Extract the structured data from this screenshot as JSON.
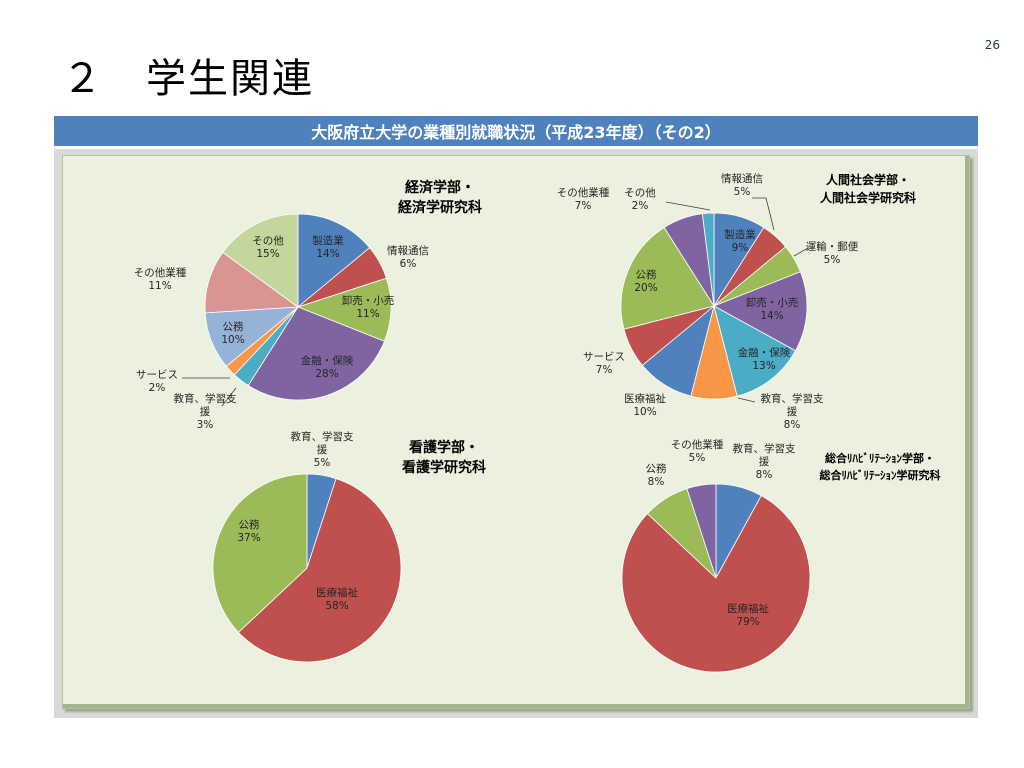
{
  "page_number": "26",
  "slide_title": "２　学生関連",
  "banner_title": "大阪府立大学の業種別就職状況（平成23年度）（その2）",
  "colors": {
    "banner": "#4f81bd",
    "panel": "#ebf1de",
    "製造業": "#4f81bd",
    "情報通信": "#c0504d",
    "運輸・郵便": "#9bbb59",
    "卸売・小売": "#9bbb59",
    "金融・保険": "#8064a2",
    "教育、学習支援": "#f79646",
    "サービス": "#4bacc6",
    "公務": "#9bbb59",
    "医療福祉": "#c0504d",
    "その他業種": "#d99594",
    "その他": "#c3d69b"
  },
  "chart_data": [
    {
      "type": "pie",
      "title": "経済学部・\n経済学研究科",
      "slices": [
        {
          "label": "製造業",
          "value": 14,
          "color": "#4f81bd"
        },
        {
          "label": "情報通信",
          "value": 6,
          "color": "#c0504d"
        },
        {
          "label": "卸売・小売",
          "value": 11,
          "color": "#9bbb59"
        },
        {
          "label": "金融・保険",
          "value": 28,
          "color": "#8064a2"
        },
        {
          "label": "教育、学習支援",
          "value": 3,
          "color": "#4bacc6"
        },
        {
          "label": "サービス",
          "value": 2,
          "color": "#f79646"
        },
        {
          "label": "公務",
          "value": 10,
          "color": "#95b3d7"
        },
        {
          "label": "その他業種",
          "value": 11,
          "color": "#d99594"
        },
        {
          "label": "その他",
          "value": 15,
          "color": "#c3d69b"
        }
      ]
    },
    {
      "type": "pie",
      "title": "人間社会学部・\n人間社会学研究科",
      "slices": [
        {
          "label": "製造業",
          "value": 9,
          "color": "#4f81bd"
        },
        {
          "label": "情報通信",
          "value": 5,
          "color": "#c0504d"
        },
        {
          "label": "運輸・郵便",
          "value": 5,
          "color": "#9bbb59"
        },
        {
          "label": "卸売・小売",
          "value": 14,
          "color": "#8064a2"
        },
        {
          "label": "金融・保険",
          "value": 13,
          "color": "#4bacc6"
        },
        {
          "label": "教育、学習支援",
          "value": 8,
          "color": "#f79646"
        },
        {
          "label": "医療福祉",
          "value": 10,
          "color": "#4f81bd"
        },
        {
          "label": "サービス",
          "value": 7,
          "color": "#c0504d"
        },
        {
          "label": "公務",
          "value": 20,
          "color": "#9bbb59"
        },
        {
          "label": "その他業種",
          "value": 7,
          "color": "#8064a2"
        },
        {
          "label": "その他",
          "value": 2,
          "color": "#4bacc6"
        }
      ]
    },
    {
      "type": "pie",
      "title": "看護学部・\n看護学研究科",
      "slices": [
        {
          "label": "教育、学習支援",
          "value": 5,
          "color": "#4f81bd"
        },
        {
          "label": "医療福祉",
          "value": 58,
          "color": "#c0504d"
        },
        {
          "label": "公務",
          "value": 37,
          "color": "#9bbb59"
        }
      ]
    },
    {
      "type": "pie",
      "title": "総合ﾘﾊﾋﾞﾘﾃｰｼｮﾝ学部・\n総合ﾘﾊﾋﾞﾘﾃｰｼｮﾝ学研究科",
      "slices": [
        {
          "label": "教育、学習支援",
          "value": 8,
          "color": "#4f81bd"
        },
        {
          "label": "医療福祉",
          "value": 79,
          "color": "#c0504d"
        },
        {
          "label": "公務",
          "value": 8,
          "color": "#9bbb59"
        },
        {
          "label": "その他業種",
          "value": 5,
          "color": "#8064a2"
        }
      ]
    }
  ]
}
